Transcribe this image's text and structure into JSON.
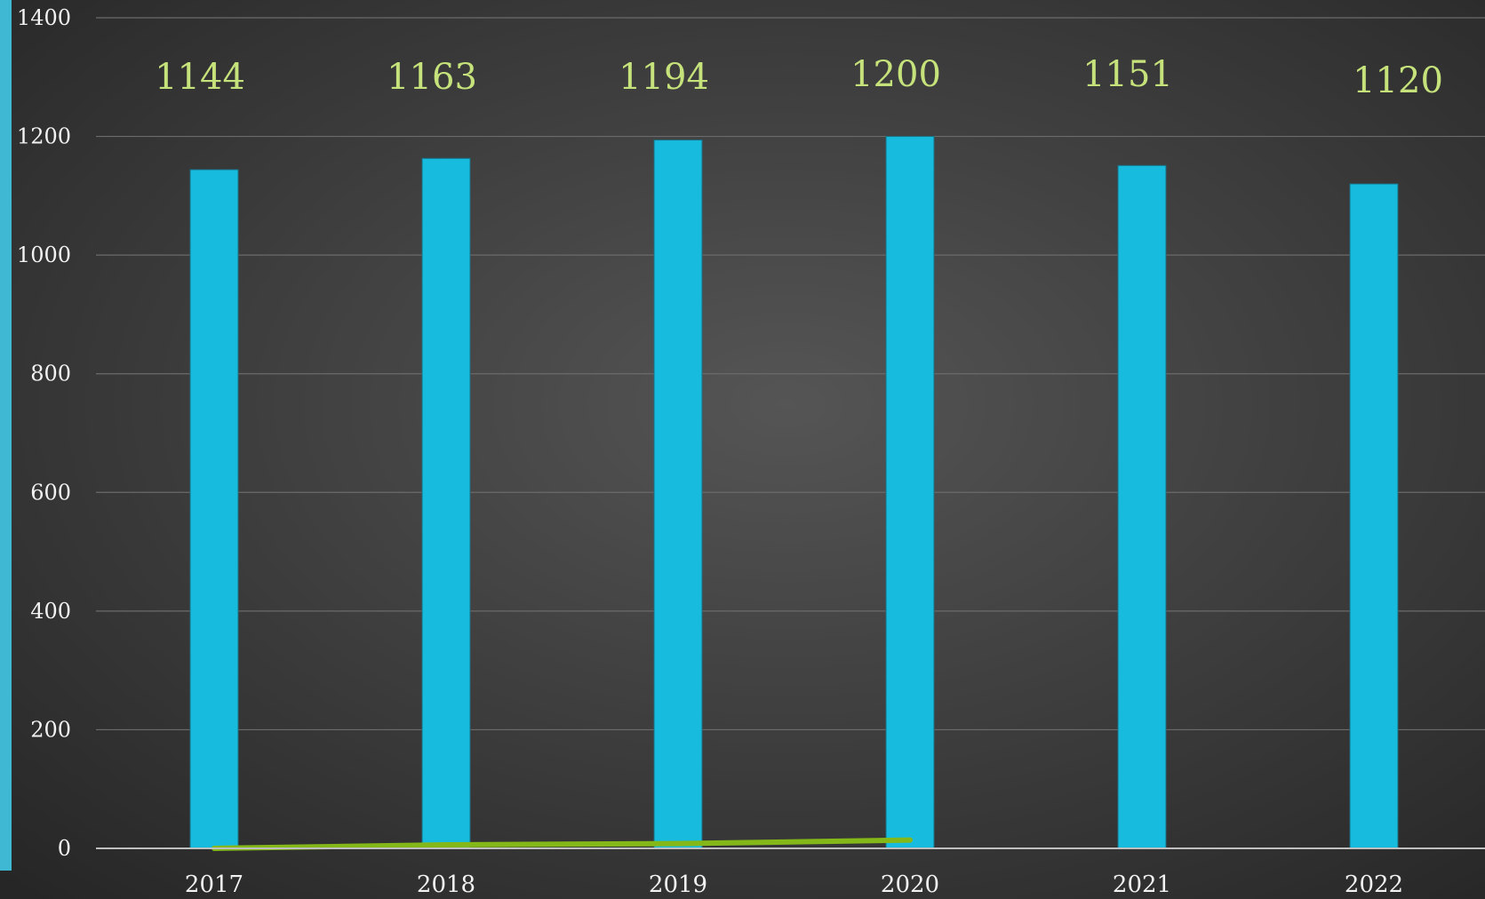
{
  "chart_data": {
    "type": "bar",
    "categories": [
      "2017",
      "2018",
      "2019",
      "2020",
      "2021",
      "2022"
    ],
    "series": [
      {
        "values": [
          1144,
          1163,
          1194,
          1200,
          1151,
          1120
        ],
        "data_labels": [
          "1144",
          "1163",
          "1194",
          "1200",
          "1151",
          "1120"
        ]
      },
      {
        "type": "line",
        "values": [
          0,
          6,
          8,
          14,
          null,
          null
        ]
      }
    ],
    "title": "",
    "xlabel": "",
    "ylabel": "",
    "ylim": [
      0,
      1400
    ],
    "yticks": [
      "0",
      "200",
      "400",
      "600",
      "800",
      "1000",
      "1200",
      "1400"
    ],
    "grid": true,
    "legend": "none",
    "colors": {
      "bar": "#17BBDD",
      "line": "#84B819",
      "data_label": "#C6E27A",
      "background_center": "#555555",
      "background_edge": "#262626",
      "gridline": "#6b6b6b",
      "axis_line": "#bfbfbf",
      "tick_label": "#f2f2f2",
      "left_accent": "#3FB8D3"
    }
  }
}
